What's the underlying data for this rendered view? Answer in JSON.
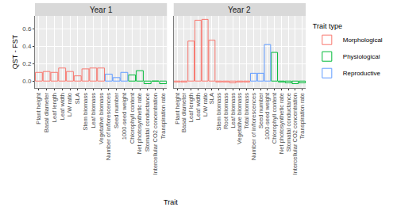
{
  "chart_data": {
    "type": "bar",
    "y_label": "QST - FST",
    "x_label": "Trait",
    "legend_title": "Trait type",
    "legend": "right",
    "grid": true,
    "ylim": [
      -0.08,
      0.75
    ],
    "yticks": [
      {
        "value": 0,
        "label": "0.0"
      },
      {
        "value": 0.2,
        "label": "0.2"
      },
      {
        "value": 0.4,
        "label": "0.4"
      },
      {
        "value": 0.6,
        "label": "0.6"
      }
    ],
    "panels": [
      {
        "title": "Year 1",
        "categories": [
          "Plant height",
          "Basal diameter",
          "Leaf length",
          "Leaf width",
          "L/W ratio",
          "SLA",
          "Stem biomass",
          "Leaf biomass",
          "Vegetative biomass",
          "Number of inflorescences",
          "Seed number",
          "1000-seed weight",
          "Chlorophyll content",
          "Net photosynthetic rate",
          "Stomatal conductance",
          "Intercellular CO2 concentration",
          "Transpiration rate"
        ],
        "series": [
          {
            "name": "Morphological",
            "color": "#F8766D",
            "values": [
              0.1,
              0.11,
              0.1,
              0.15,
              0.11,
              0.06,
              0.14,
              0.15,
              0.15,
              null,
              null,
              null,
              null,
              null,
              null,
              null,
              null
            ]
          },
          {
            "name": "Physiological",
            "color": "#00BA38",
            "values": [
              null,
              null,
              null,
              null,
              null,
              null,
              null,
              null,
              null,
              null,
              null,
              null,
              0.07,
              0.12,
              -0.03,
              0.0,
              -0.03
            ]
          },
          {
            "name": "Reproductive",
            "color": "#619CFF",
            "values": [
              null,
              null,
              null,
              null,
              null,
              null,
              null,
              null,
              null,
              0.08,
              0.04,
              0.1,
              null,
              null,
              null,
              null,
              null
            ]
          }
        ]
      },
      {
        "title": "Year 2",
        "categories": [
          "Plant height",
          "Basal diameter",
          "Leaf length",
          "Leaf width",
          "L/W ratio",
          "SLA",
          "Stem biomass",
          "Root biomass",
          "Leaf biomass",
          "Vegetative biomass",
          "Total biomass",
          "Number of inflorescences",
          "Seed number",
          "1000-seed weight",
          "Chlorophyll content",
          "Net photosynthetic rate",
          "Stomatal conductance",
          "Intercellular CO2 concentration",
          "Transpiration rate"
        ],
        "series": [
          {
            "name": "Morphological",
            "color": "#F8766D",
            "values": [
              -0.01,
              -0.01,
              0.46,
              0.7,
              0.71,
              0.47,
              -0.01,
              -0.01,
              -0.02,
              -0.01,
              -0.01,
              null,
              null,
              null,
              null,
              null,
              null,
              null,
              null
            ]
          },
          {
            "name": "Physiological",
            "color": "#00BA38",
            "values": [
              null,
              null,
              null,
              null,
              null,
              null,
              null,
              null,
              null,
              null,
              null,
              null,
              null,
              null,
              0.33,
              -0.01,
              -0.02,
              -0.03,
              -0.02
            ]
          },
          {
            "name": "Reproductive",
            "color": "#619CFF",
            "values": [
              null,
              null,
              null,
              null,
              null,
              null,
              null,
              null,
              null,
              null,
              null,
              0.09,
              0.09,
              0.42,
              null,
              null,
              null,
              null,
              null
            ]
          }
        ]
      }
    ]
  }
}
